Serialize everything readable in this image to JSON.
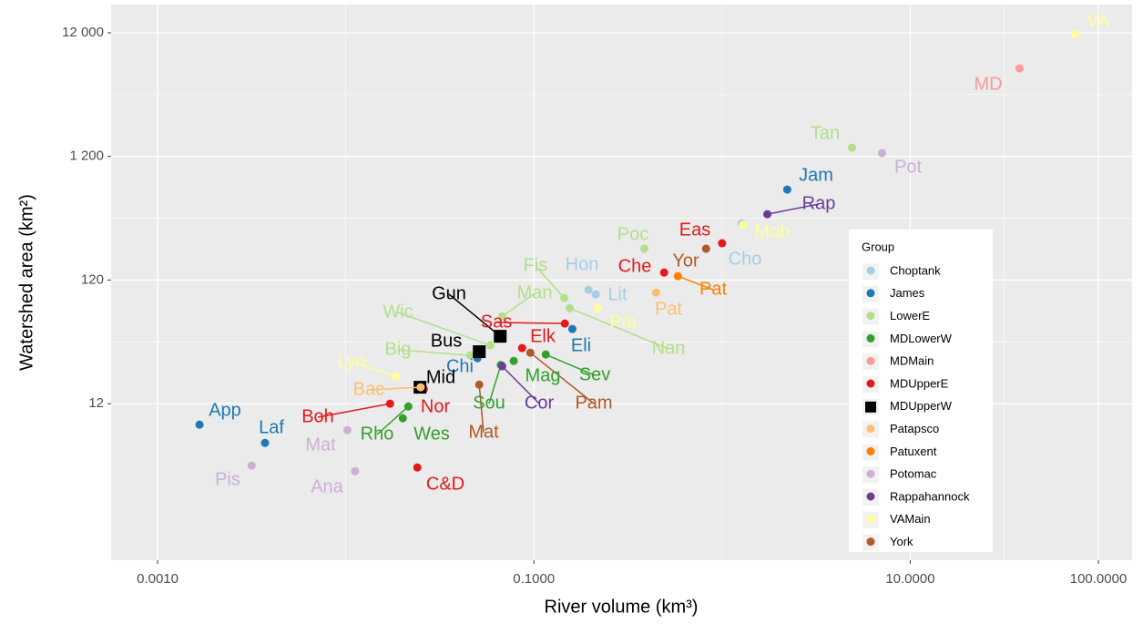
{
  "chart_data": {
    "type": "scatter",
    "x_label": "River volume (km³)",
    "y_label": "Watershed area (km²)",
    "log_x": true,
    "log_y": true,
    "grid": true,
    "xlim": [
      0.000566,
      151
    ],
    "ylim": [
      0.65,
      20300
    ],
    "xticks": [
      {
        "value": 0.001,
        "label": "0.0010"
      },
      {
        "value": 0.1,
        "label": "0.1000"
      },
      {
        "value": 10,
        "label": "10.0000"
      },
      {
        "value": 100,
        "label": "100.0000"
      }
    ],
    "yticks": [
      12,
      120,
      {
        "value": 1200,
        "label": "1 200"
      },
      {
        "value": 12000,
        "label": "12 000"
      }
    ],
    "legend_title": "Group",
    "legend_position": "right",
    "series": [
      {
        "name": "Choptank",
        "color": "#A6CEE3",
        "labels": [
          "Hon",
          "Lit",
          "Cho"
        ],
        "x": [
          0.195,
          0.213,
          1.27
        ],
        "y": [
          100,
          92,
          345
        ]
      },
      {
        "name": "James",
        "color": "#1F78B4",
        "labels": [
          "Jam",
          "Eli",
          "Chi",
          "App",
          "Laf"
        ],
        "x": [
          2.22,
          0.16,
          0.0501,
          0.00167,
          0.00372
        ],
        "y": [
          647,
          48.2,
          28,
          8.12,
          5.78
        ]
      },
      {
        "name": "LowerE",
        "color": "#B2DF8A",
        "labels": [
          "Tan",
          "Poc",
          "Fis",
          "Man",
          "Nan",
          "Wic",
          "Big"
        ],
        "x": [
          4.9,
          0.386,
          0.145,
          0.0678,
          0.155,
          0.0586,
          0.0458
        ],
        "y": [
          1413,
          215,
          86,
          61,
          71,
          35.6,
          29.5
        ]
      },
      {
        "name": "MDLowerW",
        "color": "#33A02C",
        "labels": [
          "Mag",
          "Sev",
          "Sou",
          "Rho",
          "Wes"
        ],
        "x": [
          0.0781,
          0.1156,
          0.0667,
          0.0215,
          0.0201
        ],
        "y": [
          26.6,
          30,
          24.7,
          11.4,
          9.15
        ]
      },
      {
        "name": "MDMain",
        "color": "#FB9A99",
        "labels": [
          "MD"
        ],
        "x": [
          38.1
        ],
        "y": [
          6180
        ]
      },
      {
        "name": "MDUpperE",
        "color": "#E31A1C",
        "labels": [
          "Eas",
          "Che",
          "Sas",
          "Elk",
          "Boh",
          "Nor",
          "C&D"
        ],
        "x": [
          1.0,
          0.492,
          0.146,
          0.0865,
          0.0172,
          0.026,
          0.024
        ],
        "y": [
          238,
          138,
          53.4,
          33.8,
          12,
          15.8,
          3.66
        ]
      },
      {
        "name": "MDUpperW",
        "color": "#000000",
        "shape": "square",
        "labels": [
          "Gun",
          "Bus",
          "Mid"
        ],
        "x": [
          0.0662,
          0.0512,
          0.0248
        ],
        "y": [
          42.1,
          31.6,
          16.3
        ]
      },
      {
        "name": "Patapsco",
        "color": "#FDBF6F",
        "labels": [
          "Pat",
          "Bac"
        ],
        "x": [
          0.446,
          0.025
        ],
        "y": [
          95,
          16.3
        ]
      },
      {
        "name": "Patuxent",
        "color": "#FF7F00",
        "labels": [
          "Pat"
        ],
        "x": [
          0.582
        ],
        "y": [
          129
        ]
      },
      {
        "name": "Potomac",
        "color": "#CAB2D6",
        "labels": [
          "Pot",
          "Mat",
          "Pis",
          "Ana"
        ],
        "x": [
          7.08,
          0.0102,
          0.00316,
          0.0112
        ],
        "y": [
          1276,
          7.33,
          3.79,
          3.42
        ]
      },
      {
        "name": "Rappahannock",
        "color": "#6A3D9A",
        "labels": [
          "Rap",
          "Cor"
        ],
        "x": [
          1.74,
          0.0678
        ],
        "y": [
          409,
          24.1
        ]
      },
      {
        "name": "VAMain",
        "color": "#FFFF99",
        "labels": [
          "Mob",
          "Pia",
          "Lyn",
          "VA"
        ],
        "x": [
          1.29,
          0.218,
          0.0184,
          75.3
        ],
        "y": [
          335,
          71,
          20,
          11780
        ]
      },
      {
        "name": "York",
        "color": "#B15928",
        "labels": [
          "Yor",
          "Pam",
          "Mat"
        ],
        "x": [
          0.822,
          0.0957,
          0.0512
        ],
        "y": [
          215,
          31,
          17.1
        ]
      }
    ]
  }
}
